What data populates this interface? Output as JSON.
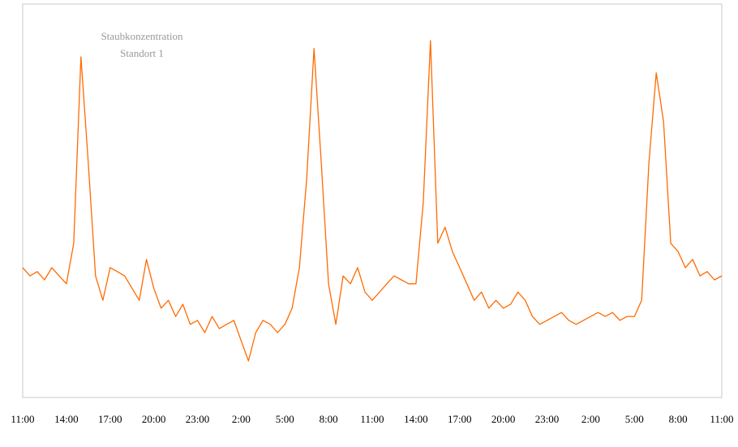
{
  "chart_data": {
    "type": "line",
    "title": [
      "Staubkonzentration",
      "Standort 1"
    ],
    "x": [
      "11:00",
      "11:30",
      "12:00",
      "12:30",
      "13:00",
      "13:30",
      "14:00",
      "14:30",
      "15:00",
      "15:30",
      "16:00",
      "16:30",
      "17:00",
      "17:30",
      "18:00",
      "18:30",
      "19:00",
      "19:30",
      "20:00",
      "20:30",
      "21:00",
      "21:30",
      "22:00",
      "22:30",
      "23:00",
      "23:30",
      "0:00",
      "0:30",
      "1:00",
      "1:30",
      "2:00",
      "2:30",
      "3:00",
      "3:30",
      "4:00",
      "4:30",
      "5:00",
      "5:30",
      "6:00",
      "6:30",
      "7:00",
      "7:30",
      "8:00",
      "8:30",
      "9:00",
      "9:30",
      "10:00",
      "10:30",
      "11:00",
      "11:30",
      "12:00",
      "12:30",
      "13:00",
      "13:30",
      "14:00",
      "14:30",
      "15:00",
      "15:30",
      "16:00",
      "16:30",
      "17:00",
      "17:30",
      "18:00",
      "18:30",
      "19:00",
      "19:30",
      "20:00",
      "20:30",
      "21:00",
      "21:30",
      "22:00",
      "22:30",
      "23:00",
      "23:30",
      "0:00",
      "0:30",
      "1:00",
      "1:30",
      "2:00",
      "2:30",
      "3:00",
      "3:30",
      "4:00",
      "4:30",
      "5:00",
      "5:30",
      "6:00",
      "6:30",
      "7:00",
      "7:30",
      "8:00",
      "8:30",
      "9:00",
      "9:30",
      "10:00",
      "10:30",
      "11:00"
    ],
    "series": [
      {
        "name": "Staubkonzentration Standort 1",
        "color": "#ff6a00",
        "values": [
          33.0,
          30.9,
          32.0,
          29.9,
          33.0,
          30.9,
          28.9,
          39.2,
          86.6,
          59.8,
          30.9,
          24.7,
          33.0,
          32.0,
          30.9,
          27.8,
          24.7,
          35.1,
          27.8,
          22.7,
          24.7,
          20.6,
          23.7,
          18.6,
          19.6,
          16.5,
          20.6,
          17.5,
          18.6,
          19.6,
          14.4,
          9.3,
          16.5,
          19.6,
          18.6,
          16.5,
          18.6,
          22.7,
          33.0,
          55.7,
          88.7,
          59.8,
          28.9,
          18.6,
          30.9,
          28.9,
          33.0,
          26.8,
          24.7,
          26.8,
          28.9,
          30.9,
          29.9,
          28.9,
          28.9,
          49.5,
          90.7,
          39.2,
          43.3,
          37.1,
          33.0,
          28.9,
          24.7,
          26.8,
          22.7,
          24.7,
          22.7,
          23.7,
          26.8,
          24.7,
          20.6,
          18.6,
          19.6,
          20.6,
          21.6,
          19.6,
          18.6,
          19.6,
          20.6,
          21.6,
          20.6,
          21.6,
          19.6,
          20.6,
          20.6,
          24.7,
          59.8,
          82.5,
          70.1,
          39.2,
          37.1,
          33.0,
          35.1,
          30.9,
          32.0,
          29.9,
          30.9
        ]
      }
    ],
    "xticks": [
      "11:00",
      "14:00",
      "17:00",
      "20:00",
      "23:00",
      "2:00",
      "5:00",
      "8:00",
      "11:00",
      "14:00",
      "17:00",
      "20:00",
      "23:00",
      "2:00",
      "5:00",
      "8:00",
      "11:00"
    ],
    "ylim": [
      0,
      100
    ],
    "grid": false
  }
}
